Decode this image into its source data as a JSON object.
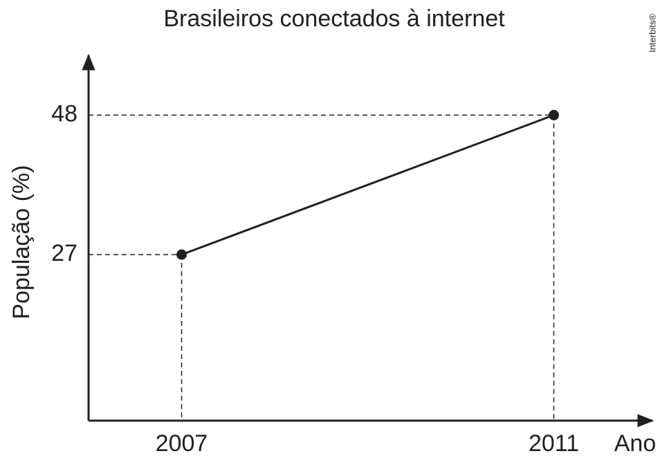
{
  "chart_data": {
    "type": "line",
    "title": "Brasileiros conectados à internet",
    "y_label": "População (%)",
    "x_label": "Ano",
    "watermark": "Interbits®",
    "x": [
      2007,
      2011
    ],
    "series": [
      {
        "name": "Brasileiros conectados",
        "color": "#231f20",
        "values": [
          27,
          48
        ]
      }
    ],
    "xlim": [
      2006,
      2012
    ],
    "xticks": [
      2007,
      2011
    ],
    "ylim": [
      2,
      57
    ],
    "yticks": [
      27,
      48
    ],
    "guides": "dashed"
  }
}
